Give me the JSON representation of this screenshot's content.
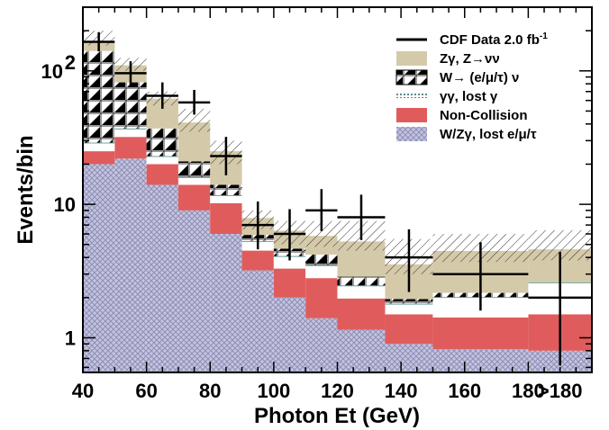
{
  "chart_data": {
    "type": "bar",
    "title": "",
    "xlabel": "Photon Et (GeV)",
    "ylabel": "Events/bin",
    "y_scale": "log",
    "ylim": [
      0.55,
      300
    ],
    "x_tick_labels": [
      "40",
      "60",
      "80",
      "100",
      "120",
      "140",
      "160",
      "180",
      ">180"
    ],
    "y_tick_labels": [
      "1",
      "10",
      "10^2"
    ],
    "bins": [
      [
        40,
        50
      ],
      [
        50,
        60
      ],
      [
        60,
        70
      ],
      [
        70,
        80
      ],
      [
        80,
        90
      ],
      [
        90,
        100
      ],
      [
        100,
        110
      ],
      [
        110,
        120
      ],
      [
        120,
        135
      ],
      [
        135,
        150
      ],
      [
        150,
        180
      ],
      [
        180,
        200
      ]
    ],
    "stack": [
      {
        "name": "W/Zγ, lost e/μ/τ",
        "color": "#b7b7d6",
        "pattern": "crosshatch",
        "values": [
          20,
          22,
          14,
          9,
          6,
          3.2,
          2.0,
          1.4,
          1.15,
          0.9,
          0.82,
          0.8
        ]
      },
      {
        "name": "Non-Collision",
        "color": "#e05c5c",
        "pattern": "solid",
        "values": [
          5,
          10,
          6,
          5,
          4.2,
          1.3,
          1.3,
          1.4,
          0.82,
          0.6,
          0.6,
          0.7
        ]
      },
      {
        "name": "γγ, lost γ",
        "color": "#ffffff",
        "pattern": "solid",
        "values": [
          4,
          5,
          3,
          2,
          1.5,
          0.8,
          0.8,
          0.7,
          0.5,
          0.3,
          0.6,
          1.1
        ]
      },
      {
        "name": "W→ (e/μ/τ) ν",
        "color": "#000000",
        "pattern": "checker",
        "values": [
          112,
          45,
          14,
          5,
          2.3,
          0.6,
          0.55,
          0.7,
          0.4,
          0.15,
          0.15,
          0.0
        ]
      },
      {
        "name": "Zγ, Z→νν",
        "color": "#d4c9a9",
        "pattern": "solid",
        "values": [
          22,
          28,
          25,
          20,
          11,
          2.0,
          1.7,
          1.6,
          2.4,
          1.6,
          2.3,
          2.0
        ]
      }
    ],
    "uncertainty_band": {
      "lower": [
        155,
        100,
        55,
        35,
        20,
        6.5,
        5.0,
        4.8,
        4.5,
        3.0,
        3.7,
        3.8
      ],
      "upper": [
        200,
        125,
        70,
        52,
        30,
        9.0,
        7.5,
        7.5,
        7.5,
        5.5,
        6.0,
        6.4
      ]
    },
    "data": {
      "name": "CDF Data 2.0 fb-1",
      "points": [
        {
          "x": 45,
          "y": 165,
          "xerr": 5,
          "ylo": 140,
          "yhi": 195
        },
        {
          "x": 55,
          "y": 96,
          "xerr": 5,
          "ylo": 78,
          "yhi": 118
        },
        {
          "x": 65,
          "y": 65,
          "xerr": 5,
          "ylo": 52,
          "yhi": 82
        },
        {
          "x": 75,
          "y": 58,
          "xerr": 5,
          "ylo": 47,
          "yhi": 72
        },
        {
          "x": 85,
          "y": 23,
          "xerr": 5,
          "ylo": 16.5,
          "yhi": 32
        },
        {
          "x": 95,
          "y": 7,
          "xerr": 5,
          "ylo": 4.6,
          "yhi": 10.5
        },
        {
          "x": 105,
          "y": 6,
          "xerr": 5,
          "ylo": 3.8,
          "yhi": 9.2
        },
        {
          "x": 115,
          "y": 9,
          "xerr": 5,
          "ylo": 6.3,
          "yhi": 13
        },
        {
          "x": 127.5,
          "y": 8,
          "xerr": 7.5,
          "ylo": 5.4,
          "yhi": 11.8
        },
        {
          "x": 142.5,
          "y": 4,
          "xerr": 7.5,
          "ylo": 2.2,
          "yhi": 6.5
        },
        {
          "x": 165,
          "y": 3,
          "xerr": 15,
          "ylo": 1.6,
          "yhi": 5.2
        },
        {
          "x": 190,
          "y": 2,
          "xerr": 10,
          "ylo": 0.62,
          "yhi": 4.4
        }
      ]
    },
    "legend": {
      "placement": "top-right",
      "items": [
        {
          "key": "data",
          "label": "CDF Data 2.0 fb",
          "sup": "-1"
        },
        {
          "key": "zg",
          "label": "Zγ, Z→νν"
        },
        {
          "key": "w",
          "label": "W→ (e/μ/τ) ν"
        },
        {
          "key": "gg",
          "label": "γγ, lost γ"
        },
        {
          "key": "nc",
          "label": "Non-Collision"
        },
        {
          "key": "wz",
          "label": "W/Zγ, lost e/μ/τ"
        }
      ]
    }
  }
}
